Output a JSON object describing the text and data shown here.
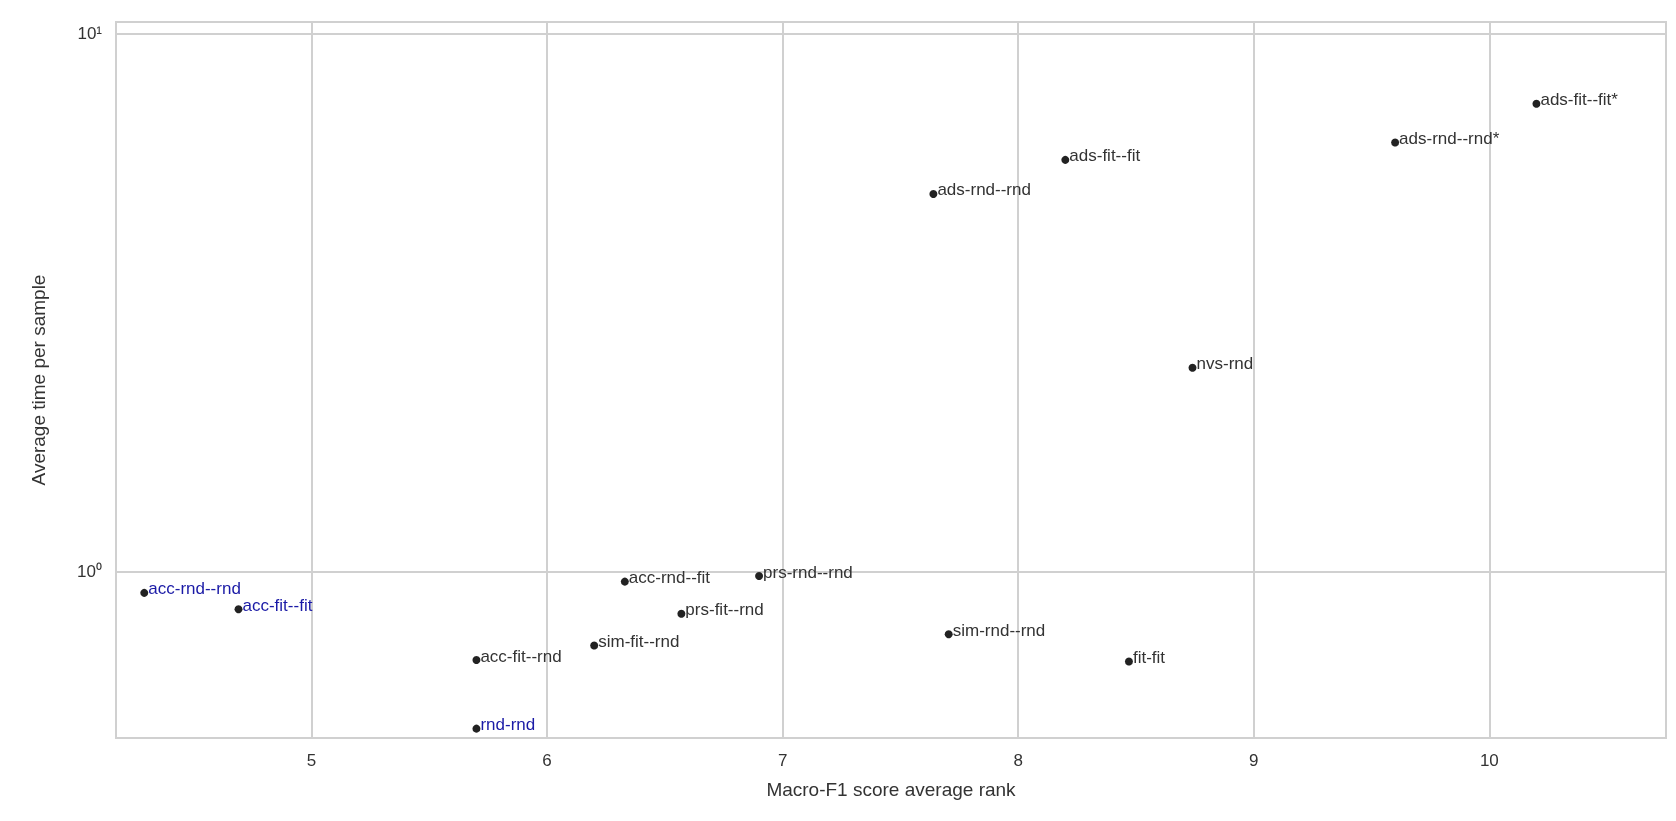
{
  "chart_data": {
    "type": "scatter",
    "xlabel": "Macro-F1 score average rank",
    "ylabel": "Average time per sample",
    "log": "y",
    "grid": true,
    "marker": "circle",
    "xlim": [
      4.17,
      10.75
    ],
    "xticks": [
      5,
      6,
      7,
      8,
      9,
      10
    ],
    "ylim": [
      0.49,
      10.5
    ],
    "yticks": [
      {
        "value": 1,
        "label": "10⁰"
      },
      {
        "value": 10,
        "label": "10¹"
      }
    ],
    "series": [
      {
        "color": "#222222",
        "x": [
          5.7,
          6.2,
          6.33,
          6.57,
          6.9,
          7.705,
          8.47,
          7.64,
          8.2,
          8.74,
          9.6,
          10.2
        ],
        "values": [
          0.684,
          0.728,
          0.957,
          0.834,
          0.98,
          0.764,
          0.68,
          5.03,
          5.82,
          2.39,
          6.27,
          7.4
        ],
        "value_labels": [
          "acc-fit--rnd",
          "sim-fit--rnd",
          "acc-rnd--fit",
          "prs-fit--rnd",
          "prs-rnd--rnd",
          "sim-rnd--rnd",
          "fit-fit",
          "ads-rnd--rnd",
          "ads-fit--fit",
          "nvs-rnd",
          "ads-rnd--rnd*",
          "ads-fit--fit*"
        ]
      },
      {
        "color": "#222222",
        "x": [
          4.29,
          4.69,
          5.7
        ],
        "values": [
          0.912,
          0.85,
          0.51
        ],
        "value_labels": [
          "acc-rnd--rnd",
          "acc-fit--fit",
          "rnd-rnd"
        ]
      }
    ]
  }
}
